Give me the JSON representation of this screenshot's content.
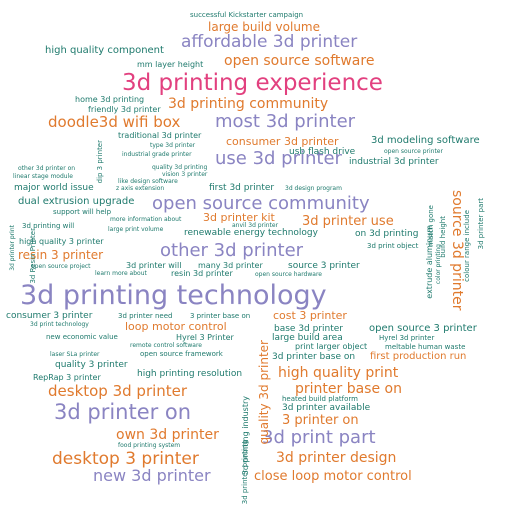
{
  "palette": {
    "teal": "#1f7a6d",
    "orange": "#e07a2e",
    "purple": "#8a84c2",
    "pink": "#e2407f"
  },
  "words": [
    {
      "text": "successful Kickstarter campaign",
      "color": "teal"
    },
    {
      "text": "large build volume",
      "color": "orange"
    },
    {
      "text": "affordable 3d printer",
      "color": "purple"
    },
    {
      "text": "high quality component",
      "color": "teal"
    },
    {
      "text": "open source software",
      "color": "orange"
    },
    {
      "text": "mm layer height",
      "color": "teal"
    },
    {
      "text": "3d printing experience",
      "color": "pink"
    },
    {
      "text": "home 3d printing",
      "color": "teal"
    },
    {
      "text": "3d printing community",
      "color": "orange"
    },
    {
      "text": "friendly 3d printer",
      "color": "teal"
    },
    {
      "text": "doodle3d wifi box",
      "color": "orange"
    },
    {
      "text": "most 3d printer",
      "color": "purple"
    },
    {
      "text": "traditional 3d printer",
      "color": "teal"
    },
    {
      "text": "consumer 3d printer",
      "color": "orange"
    },
    {
      "text": "3d modeling software",
      "color": "teal"
    },
    {
      "text": "type 3d printer",
      "color": "teal"
    },
    {
      "text": "open source printer",
      "color": "teal"
    },
    {
      "text": "industrial grade printer",
      "color": "teal"
    },
    {
      "text": "use 3d printer",
      "color": "purple"
    },
    {
      "text": "usb flash drive",
      "color": "teal"
    },
    {
      "text": "industrial 3d printer",
      "color": "teal"
    },
    {
      "text": "other 3d printer on",
      "color": "teal"
    },
    {
      "text": "quality 3d printing",
      "color": "teal"
    },
    {
      "text": "linear stage module",
      "color": "teal"
    },
    {
      "text": "vision 3 printer",
      "color": "teal"
    },
    {
      "text": "like design software",
      "color": "teal"
    },
    {
      "text": "major world issue",
      "color": "teal"
    },
    {
      "text": "z axis extension",
      "color": "teal"
    },
    {
      "text": "first 3d printer",
      "color": "teal"
    },
    {
      "text": "3d design program",
      "color": "teal"
    },
    {
      "text": "dual extrusion upgrade",
      "color": "teal"
    },
    {
      "text": "open source community",
      "color": "purple"
    },
    {
      "text": "support will help",
      "color": "teal"
    },
    {
      "text": "3d printer kit",
      "color": "orange"
    },
    {
      "text": "more information about",
      "color": "teal"
    },
    {
      "text": "anvil 3d printer",
      "color": "teal"
    },
    {
      "text": "3d printer use",
      "color": "orange"
    },
    {
      "text": "3d printing will",
      "color": "teal"
    },
    {
      "text": "large print volume",
      "color": "teal"
    },
    {
      "text": "renewable energy technology",
      "color": "teal"
    },
    {
      "text": "on 3d printing",
      "color": "teal"
    },
    {
      "text": "high quality 3 printer",
      "color": "teal"
    },
    {
      "text": "other 3d printer",
      "color": "purple"
    },
    {
      "text": "3d print object",
      "color": "teal"
    },
    {
      "text": "resin 3 printer",
      "color": "orange"
    },
    {
      "text": "open source project",
      "color": "teal"
    },
    {
      "text": "3d printer will",
      "color": "teal"
    },
    {
      "text": "many 3d printer",
      "color": "teal"
    },
    {
      "text": "source 3 printer",
      "color": "teal"
    },
    {
      "text": "learn more about",
      "color": "teal"
    },
    {
      "text": "resin 3d printer",
      "color": "teal"
    },
    {
      "text": "open source hardware",
      "color": "teal"
    },
    {
      "text": "3d printing technology",
      "color": "purple"
    },
    {
      "text": "consumer 3 printer",
      "color": "teal"
    },
    {
      "text": "3d printer need",
      "color": "teal"
    },
    {
      "text": "3 printer base on",
      "color": "teal"
    },
    {
      "text": "cost 3 printer",
      "color": "orange"
    },
    {
      "text": "3d print technology",
      "color": "teal"
    },
    {
      "text": "loop motor control",
      "color": "orange"
    },
    {
      "text": "base 3d printer",
      "color": "teal"
    },
    {
      "text": "open source 3 printer",
      "color": "teal"
    },
    {
      "text": "new economic value",
      "color": "teal"
    },
    {
      "text": "Hyrel 3 Printer",
      "color": "teal"
    },
    {
      "text": "large build area",
      "color": "teal"
    },
    {
      "text": "Hyrel 3d printer",
      "color": "teal"
    },
    {
      "text": "remote control software",
      "color": "teal"
    },
    {
      "text": "print larger object",
      "color": "teal"
    },
    {
      "text": "meltable human waste",
      "color": "teal"
    },
    {
      "text": "laser SLa printer",
      "color": "teal"
    },
    {
      "text": "open source framework",
      "color": "teal"
    },
    {
      "text": "3d printer base on",
      "color": "teal"
    },
    {
      "text": "first production run",
      "color": "orange"
    },
    {
      "text": "quality 3 printer",
      "color": "teal"
    },
    {
      "text": "high printing resolution",
      "color": "teal"
    },
    {
      "text": "RepRap 3 printer",
      "color": "teal"
    },
    {
      "text": "high quality print",
      "color": "orange"
    },
    {
      "text": "desktop 3d printer",
      "color": "orange"
    },
    {
      "text": "printer base on",
      "color": "orange"
    },
    {
      "text": "heated build platform",
      "color": "teal"
    },
    {
      "text": "3d printer on",
      "color": "purple"
    },
    {
      "text": "3d printer available",
      "color": "teal"
    },
    {
      "text": "3 printer on",
      "color": "orange"
    },
    {
      "text": "own 3d printer",
      "color": "orange"
    },
    {
      "text": "3d print part",
      "color": "purple"
    },
    {
      "text": "food printing system",
      "color": "teal"
    },
    {
      "text": "desktop 3 printer",
      "color": "orange"
    },
    {
      "text": "3d printer design",
      "color": "orange"
    },
    {
      "text": "new 3d printer",
      "color": "purple"
    },
    {
      "text": "close loop motor control",
      "color": "orange"
    },
    {
      "text": "dip 3 printer",
      "color": "teal"
    },
    {
      "text": "3d Resin Printer",
      "color": "teal"
    },
    {
      "text": "3d printer print",
      "color": "teal"
    },
    {
      "text": "source 3d printer",
      "color": "orange"
    },
    {
      "text": "3d printer part",
      "color": "teal"
    },
    {
      "text": "extrude aluminum",
      "color": "teal"
    },
    {
      "text": "color printing",
      "color": "teal"
    },
    {
      "text": "match gone",
      "color": "teal"
    },
    {
      "text": "colour range include",
      "color": "teal"
    },
    {
      "text": "build height",
      "color": "teal"
    },
    {
      "text": "quality 3d printer",
      "color": "orange"
    },
    {
      "text": "3d printing industry",
      "color": "teal"
    },
    {
      "text": "3d printer printing",
      "color": "teal"
    }
  ]
}
